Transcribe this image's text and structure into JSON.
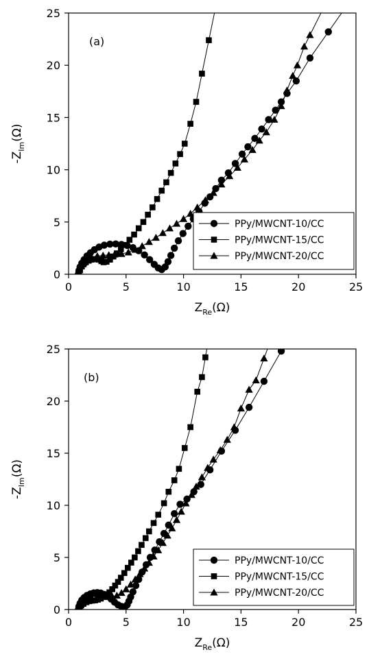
{
  "chart_data": [
    {
      "type": "scatter",
      "panel_label": "(a)",
      "xlabel": "Z",
      "xlabel_sub": "Re",
      "xlabel_unit": "(Ω)",
      "ylabel": "-Z",
      "ylabel_sub": "Im",
      "ylabel_unit": "(Ω)",
      "xlim": [
        0,
        25
      ],
      "ylim": [
        0,
        25
      ],
      "xticks": [
        0,
        5,
        10,
        15,
        20,
        25
      ],
      "yticks": [
        0,
        5,
        10,
        15,
        20,
        25
      ],
      "legend_position": "bottom-right",
      "series": [
        {
          "name": "PPy/MWCNT-10/CC",
          "marker": "circle",
          "points": [
            [
              0.85,
              0.0
            ],
            [
              0.9,
              0.35
            ],
            [
              1.0,
              0.7
            ],
            [
              1.15,
              1.05
            ],
            [
              1.35,
              1.4
            ],
            [
              1.6,
              1.75
            ],
            [
              1.9,
              2.05
            ],
            [
              2.25,
              2.35
            ],
            [
              2.65,
              2.6
            ],
            [
              3.1,
              2.78
            ],
            [
              3.6,
              2.88
            ],
            [
              4.1,
              2.9
            ],
            [
              4.6,
              2.85
            ],
            [
              5.1,
              2.75
            ],
            [
              5.6,
              2.55
            ],
            [
              6.1,
              2.25
            ],
            [
              6.6,
              1.85
            ],
            [
              7.05,
              1.4
            ],
            [
              7.45,
              0.95
            ],
            [
              7.8,
              0.6
            ],
            [
              8.1,
              0.45
            ],
            [
              8.4,
              0.7
            ],
            [
              8.65,
              1.2
            ],
            [
              8.9,
              1.8
            ],
            [
              9.2,
              2.5
            ],
            [
              9.55,
              3.2
            ],
            [
              9.95,
              3.9
            ],
            [
              10.4,
              4.6
            ],
            [
              10.85,
              5.3
            ],
            [
              11.35,
              6.0
            ],
            [
              11.85,
              6.8
            ],
            [
              12.3,
              7.4
            ],
            [
              12.8,
              8.2
            ],
            [
              13.3,
              9.0
            ],
            [
              13.9,
              9.7
            ],
            [
              14.5,
              10.6
            ],
            [
              15.1,
              11.5
            ],
            [
              15.6,
              12.2
            ],
            [
              16.2,
              13.0
            ],
            [
              16.8,
              13.9
            ],
            [
              17.4,
              14.8
            ],
            [
              18.0,
              15.7
            ],
            [
              18.5,
              16.5
            ],
            [
              19.0,
              17.3
            ],
            [
              19.8,
              18.5
            ],
            [
              21.0,
              20.7
            ],
            [
              22.6,
              23.2
            ]
          ]
        },
        {
          "name": "PPy/MWCNT-15/CC",
          "marker": "square",
          "points": [
            [
              0.85,
              0.0
            ],
            [
              0.9,
              0.25
            ],
            [
              1.0,
              0.5
            ],
            [
              1.15,
              0.75
            ],
            [
              1.3,
              0.95
            ],
            [
              1.5,
              1.15
            ],
            [
              1.75,
              1.3
            ],
            [
              2.0,
              1.4
            ],
            [
              2.3,
              1.45
            ],
            [
              2.6,
              1.4
            ],
            [
              2.85,
              1.25
            ],
            [
              3.05,
              1.15
            ],
            [
              3.3,
              1.2
            ],
            [
              3.6,
              1.4
            ],
            [
              3.9,
              1.7
            ],
            [
              4.2,
              2.0
            ],
            [
              4.55,
              2.4
            ],
            [
              4.9,
              2.8
            ],
            [
              5.3,
              3.3
            ],
            [
              5.7,
              3.8
            ],
            [
              6.1,
              4.4
            ],
            [
              6.5,
              5.0
            ],
            [
              6.9,
              5.7
            ],
            [
              7.3,
              6.4
            ],
            [
              7.7,
              7.2
            ],
            [
              8.1,
              8.0
            ],
            [
              8.5,
              8.8
            ],
            [
              8.9,
              9.7
            ],
            [
              9.3,
              10.6
            ],
            [
              9.7,
              11.5
            ],
            [
              10.1,
              12.5
            ],
            [
              10.6,
              14.4
            ],
            [
              11.1,
              16.5
            ],
            [
              11.6,
              19.2
            ],
            [
              12.2,
              22.4
            ]
          ]
        },
        {
          "name": "PPy/MWCNT-20/CC",
          "marker": "triangle",
          "points": [
            [
              0.85,
              0.05
            ],
            [
              0.95,
              0.4
            ],
            [
              1.1,
              0.8
            ],
            [
              1.3,
              1.1
            ],
            [
              1.6,
              1.4
            ],
            [
              2.0,
              1.6
            ],
            [
              2.5,
              1.75
            ],
            [
              3.0,
              1.8
            ],
            [
              3.5,
              1.85
            ],
            [
              4.0,
              1.9
            ],
            [
              4.6,
              1.95
            ],
            [
              5.2,
              2.1
            ],
            [
              5.8,
              2.35
            ],
            [
              6.4,
              2.7
            ],
            [
              7.0,
              3.1
            ],
            [
              7.6,
              3.5
            ],
            [
              8.2,
              3.95
            ],
            [
              8.8,
              4.4
            ],
            [
              9.4,
              4.85
            ],
            [
              10.0,
              5.3
            ],
            [
              10.6,
              5.8
            ],
            [
              11.2,
              6.4
            ],
            [
              11.9,
              7.1
            ],
            [
              12.6,
              7.8
            ],
            [
              13.3,
              8.6
            ],
            [
              14.0,
              9.4
            ],
            [
              14.7,
              10.2
            ],
            [
              15.3,
              11.0
            ],
            [
              16.0,
              11.9
            ],
            [
              16.6,
              12.8
            ],
            [
              17.2,
              13.6
            ],
            [
              17.9,
              14.8
            ],
            [
              18.5,
              16.1
            ],
            [
              19.0,
              17.6
            ],
            [
              19.5,
              19.0
            ],
            [
              19.9,
              20.0
            ],
            [
              20.5,
              21.8
            ],
            [
              21.0,
              22.9
            ]
          ]
        }
      ]
    },
    {
      "type": "scatter",
      "panel_label": "(b)",
      "xlabel": "Z",
      "xlabel_sub": "Re",
      "xlabel_unit": "(Ω)",
      "ylabel": "-Z",
      "ylabel_sub": "Im",
      "ylabel_unit": "(Ω)",
      "xlim": [
        0,
        25
      ],
      "ylim": [
        0,
        25
      ],
      "xticks": [
        0,
        5,
        10,
        15,
        20,
        25
      ],
      "yticks": [
        0,
        5,
        10,
        15,
        20,
        25
      ],
      "legend_position": "bottom-right",
      "series": [
        {
          "name": "PPy/MWCNT-10/CC",
          "marker": "circle",
          "points": [
            [
              0.85,
              0.0
            ],
            [
              0.9,
              0.3
            ],
            [
              1.0,
              0.6
            ],
            [
              1.15,
              0.9
            ],
            [
              1.35,
              1.15
            ],
            [
              1.6,
              1.35
            ],
            [
              1.9,
              1.5
            ],
            [
              2.2,
              1.6
            ],
            [
              2.5,
              1.62
            ],
            [
              2.8,
              1.58
            ],
            [
              3.1,
              1.45
            ],
            [
              3.4,
              1.25
            ],
            [
              3.7,
              1.0
            ],
            [
              4.0,
              0.7
            ],
            [
              4.3,
              0.45
            ],
            [
              4.6,
              0.3
            ],
            [
              4.9,
              0.25
            ],
            [
              5.1,
              0.45
            ],
            [
              5.25,
              0.8
            ],
            [
              5.4,
              1.2
            ],
            [
              5.6,
              1.7
            ],
            [
              5.85,
              2.3
            ],
            [
              6.1,
              2.9
            ],
            [
              6.4,
              3.6
            ],
            [
              6.75,
              4.3
            ],
            [
              7.1,
              5.0
            ],
            [
              7.5,
              5.7
            ],
            [
              7.9,
              6.5
            ],
            [
              8.3,
              7.3
            ],
            [
              8.7,
              8.1
            ],
            [
              9.2,
              9.2
            ],
            [
              9.7,
              10.1
            ],
            [
              10.3,
              10.6
            ],
            [
              10.9,
              11.3
            ],
            [
              11.5,
              12.0
            ],
            [
              12.3,
              13.4
            ],
            [
              13.3,
              15.2
            ],
            [
              14.5,
              17.2
            ],
            [
              15.7,
              19.4
            ],
            [
              17.0,
              21.9
            ],
            [
              18.5,
              24.8
            ]
          ]
        },
        {
          "name": "PPy/MWCNT-15/CC",
          "marker": "square",
          "points": [
            [
              0.85,
              0.0
            ],
            [
              0.95,
              0.2
            ],
            [
              1.1,
              0.4
            ],
            [
              1.3,
              0.55
            ],
            [
              1.55,
              0.7
            ],
            [
              1.8,
              0.8
            ],
            [
              2.05,
              0.85
            ],
            [
              2.3,
              0.88
            ],
            [
              2.55,
              0.95
            ],
            [
              2.8,
              1.05
            ],
            [
              3.05,
              1.2
            ],
            [
              3.3,
              1.4
            ],
            [
              3.55,
              1.65
            ],
            [
              3.8,
              1.95
            ],
            [
              4.05,
              2.3
            ],
            [
              4.3,
              2.65
            ],
            [
              4.55,
              3.05
            ],
            [
              4.85,
              3.5
            ],
            [
              5.15,
              4.0
            ],
            [
              5.45,
              4.5
            ],
            [
              5.75,
              5.0
            ],
            [
              6.05,
              5.6
            ],
            [
              6.35,
              6.2
            ],
            [
              6.7,
              6.85
            ],
            [
              7.0,
              7.5
            ],
            [
              7.4,
              8.3
            ],
            [
              7.8,
              9.1
            ],
            [
              8.3,
              10.2
            ],
            [
              8.7,
              11.3
            ],
            [
              9.2,
              12.4
            ],
            [
              9.6,
              13.5
            ],
            [
              10.1,
              15.5
            ],
            [
              10.6,
              17.5
            ],
            [
              11.2,
              20.9
            ],
            [
              11.6,
              22.3
            ],
            [
              11.9,
              24.2
            ]
          ]
        },
        {
          "name": "PPy/MWCNT-20/CC",
          "marker": "triangle",
          "points": [
            [
              0.85,
              0.05
            ],
            [
              0.95,
              0.35
            ],
            [
              1.1,
              0.65
            ],
            [
              1.3,
              0.95
            ],
            [
              1.55,
              1.2
            ],
            [
              1.85,
              1.4
            ],
            [
              2.2,
              1.5
            ],
            [
              2.6,
              1.48
            ],
            [
              3.0,
              1.4
            ],
            [
              3.4,
              1.3
            ],
            [
              3.8,
              1.25
            ],
            [
              4.2,
              1.35
            ],
            [
              4.6,
              1.6
            ],
            [
              5.0,
              1.95
            ],
            [
              5.4,
              2.4
            ],
            [
              5.8,
              2.9
            ],
            [
              6.2,
              3.4
            ],
            [
              6.6,
              3.95
            ],
            [
              7.0,
              4.5
            ],
            [
              7.4,
              5.1
            ],
            [
              7.8,
              5.7
            ],
            [
              8.2,
              6.4
            ],
            [
              8.6,
              7.1
            ],
            [
              9.0,
              7.8
            ],
            [
              9.4,
              8.6
            ],
            [
              9.8,
              9.4
            ],
            [
              10.2,
              10.2
            ],
            [
              10.7,
              11.0
            ],
            [
              11.1,
              11.8
            ],
            [
              11.6,
              12.7
            ],
            [
              12.1,
              13.6
            ],
            [
              12.6,
              14.4
            ],
            [
              13.2,
              15.3
            ],
            [
              13.8,
              16.3
            ],
            [
              14.4,
              17.5
            ],
            [
              15.0,
              19.3
            ],
            [
              15.7,
              21.1
            ],
            [
              16.3,
              22.0
            ],
            [
              17.0,
              24.1
            ]
          ]
        }
      ]
    }
  ]
}
